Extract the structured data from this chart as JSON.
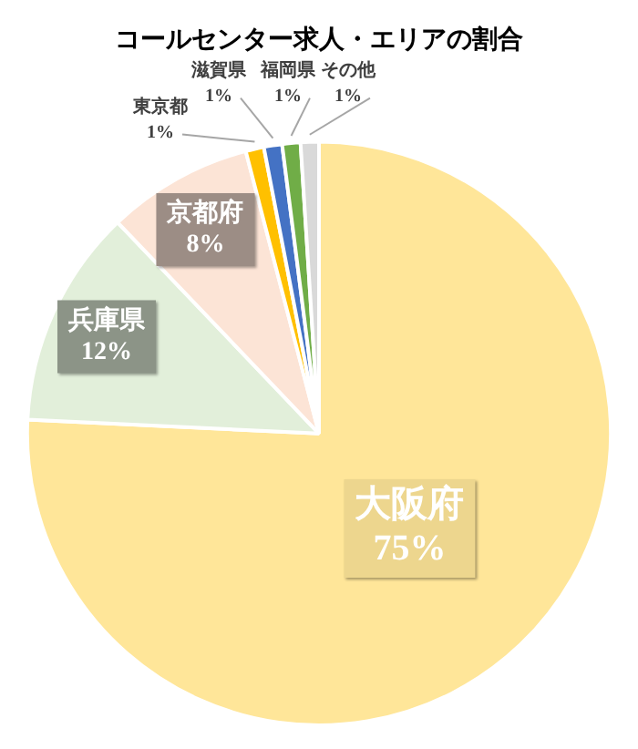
{
  "chart_data": {
    "type": "pie",
    "title": "コールセンター求人・エリアの割合",
    "categories": [
      "大阪府",
      "兵庫県",
      "京都府",
      "東京都",
      "滋賀県",
      "福岡県",
      "その他"
    ],
    "values": [
      75,
      12,
      8,
      1,
      1,
      1,
      1
    ],
    "value_labels": [
      "75%",
      "12%",
      "8%",
      "1%",
      "1%",
      "1%",
      "1%"
    ],
    "colors": [
      "#ffe699",
      "#e2efda",
      "#fce4d6",
      "#ffc000",
      "#4472c4",
      "#70ad47",
      "#d9d9d9"
    ],
    "legend": false
  }
}
